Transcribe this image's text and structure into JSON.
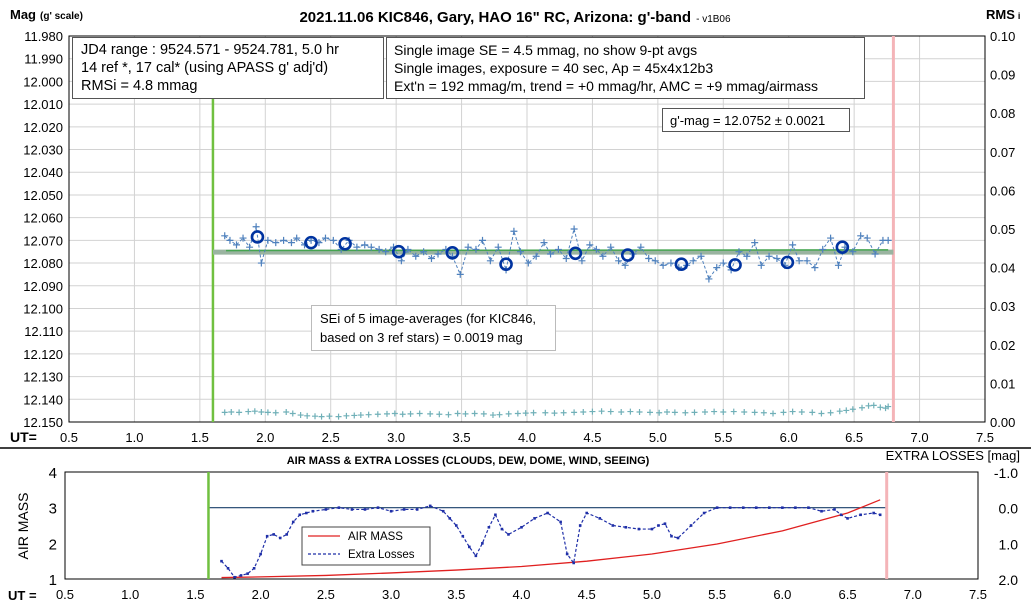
{
  "chart_data": [
    {
      "type": "scatter",
      "title": "2021.11.06 KIC846, Gary, HAO 16\" RC, Arizona: g'-band",
      "title_suffix": "- v1B06",
      "ylabel_main": "Mag",
      "ylabel_sub": "(g' scale)",
      "y2label_main": "RMS",
      "y2label_sub": "i",
      "xlabel": "UT=",
      "xlim": [
        0.5,
        7.5
      ],
      "ylim": [
        12.15,
        11.98
      ],
      "y2lim": [
        0.0,
        0.1
      ],
      "x_ticks": [
        "0.5",
        "1.0",
        "1.5",
        "2.0",
        "2.5",
        "3.0",
        "3.5",
        "4.0",
        "4.5",
        "5.0",
        "5.5",
        "6.0",
        "6.5",
        "7.0",
        "7.5"
      ],
      "y_ticks": [
        "11.980",
        "11.990",
        "12.000",
        "12.010",
        "12.020",
        "12.030",
        "12.040",
        "12.050",
        "12.060",
        "12.070",
        "12.080",
        "12.090",
        "12.100",
        "12.110",
        "12.120",
        "12.130",
        "12.140",
        "12.150"
      ],
      "y2_ticks": [
        "0.10",
        "0.09",
        "0.08",
        "0.07",
        "0.06",
        "0.05",
        "0.04",
        "0.03",
        "0.02",
        "0.01",
        "0.00"
      ],
      "grid": true,
      "green_vline_x": 1.6,
      "pink_vline_x": 6.8,
      "mean_mag": 12.0752,
      "single_images": {
        "x": [
          1.69,
          1.73,
          1.78,
          1.83,
          1.88,
          1.93,
          1.97,
          2.02,
          2.08,
          2.14,
          2.2,
          2.24,
          2.3,
          2.35,
          2.41,
          2.46,
          2.52,
          2.58,
          2.64,
          2.7,
          2.76,
          2.81,
          2.87,
          2.92,
          2.98,
          3.04,
          3.09,
          3.15,
          3.21,
          3.27,
          3.32,
          3.38,
          3.43,
          3.49,
          3.55,
          3.61,
          3.66,
          3.72,
          3.78,
          3.84,
          3.9,
          3.95,
          4.01,
          4.07,
          4.13,
          4.18,
          4.24,
          4.3,
          4.36,
          4.42,
          4.48,
          4.53,
          4.58,
          4.64,
          4.7,
          4.75,
          4.81,
          4.87,
          4.93,
          4.98,
          5.04,
          5.1,
          5.16,
          5.22,
          5.27,
          5.33,
          5.39,
          5.45,
          5.5,
          5.56,
          5.62,
          5.68,
          5.74,
          5.79,
          5.85,
          5.91,
          5.97,
          6.03,
          6.08,
          6.14,
          6.2,
          6.26,
          6.32,
          6.38,
          6.43,
          6.49,
          6.55,
          6.6,
          6.66,
          6.72,
          6.76
        ],
        "y": [
          12.068,
          12.07,
          12.072,
          12.069,
          12.073,
          12.064,
          12.08,
          12.07,
          12.071,
          12.07,
          12.071,
          12.069,
          12.072,
          12.07,
          12.071,
          12.069,
          12.07,
          12.074,
          12.07,
          12.073,
          12.072,
          12.073,
          12.074,
          12.075,
          12.073,
          12.079,
          12.074,
          12.077,
          12.075,
          12.078,
          12.076,
          12.074,
          12.077,
          12.085,
          12.073,
          12.074,
          12.07,
          12.079,
          12.073,
          12.083,
          12.066,
          12.075,
          12.08,
          12.077,
          12.071,
          12.076,
          12.074,
          12.078,
          12.065,
          12.079,
          12.072,
          12.074,
          12.077,
          12.073,
          12.079,
          12.081,
          12.076,
          12.073,
          12.078,
          12.079,
          12.081,
          12.08,
          12.082,
          12.081,
          12.079,
          12.077,
          12.087,
          12.082,
          12.08,
          12.083,
          12.075,
          12.077,
          12.071,
          12.081,
          12.077,
          12.078,
          12.081,
          12.072,
          12.079,
          12.079,
          12.082,
          12.074,
          12.069,
          12.081,
          12.073,
          12.075,
          12.068,
          12.069,
          12.076,
          12.07,
          12.07
        ]
      },
      "averages_9pt": {
        "x": [
          1.94,
          2.35,
          2.61,
          3.02,
          3.43,
          3.84,
          4.37,
          4.77,
          5.18,
          5.59,
          5.99,
          6.41
        ],
        "y": [
          12.0685,
          12.071,
          12.0715,
          12.075,
          12.0755,
          12.0805,
          12.0757,
          12.0765,
          12.0805,
          12.0808,
          12.0797,
          12.073
        ]
      },
      "rmsi": {
        "x": [
          1.69,
          1.74,
          1.8,
          1.87,
          1.92,
          1.97,
          2.02,
          2.08,
          2.16,
          2.21,
          2.27,
          2.32,
          2.38,
          2.43,
          2.49,
          2.56,
          2.62,
          2.68,
          2.73,
          2.79,
          2.86,
          2.93,
          2.99,
          3.05,
          3.11,
          3.18,
          3.26,
          3.33,
          3.4,
          3.47,
          3.53,
          3.6,
          3.67,
          3.74,
          3.79,
          3.86,
          3.93,
          3.99,
          4.05,
          4.14,
          4.21,
          4.28,
          4.36,
          4.43,
          4.5,
          4.57,
          4.64,
          4.72,
          4.79,
          4.86,
          4.94,
          5.01,
          5.07,
          5.13,
          5.21,
          5.28,
          5.36,
          5.43,
          5.5,
          5.58,
          5.66,
          5.74,
          5.81,
          5.88,
          5.96,
          6.03,
          6.1,
          6.18,
          6.25,
          6.32,
          6.39,
          6.44,
          6.49,
          6.56,
          6.61,
          6.65,
          6.7,
          6.74,
          6.76
        ],
        "y": [
          0.0025,
          0.0026,
          0.0025,
          0.0027,
          0.0028,
          0.0026,
          0.0025,
          0.0024,
          0.0026,
          0.0022,
          0.0018,
          0.0016,
          0.0015,
          0.0014,
          0.0015,
          0.0014,
          0.0016,
          0.0017,
          0.0018,
          0.0019,
          0.002,
          0.0021,
          0.0022,
          0.002,
          0.0021,
          0.0022,
          0.0021,
          0.002,
          0.0019,
          0.0022,
          0.0021,
          0.0022,
          0.0021,
          0.0018,
          0.0019,
          0.0021,
          0.0022,
          0.0023,
          0.0024,
          0.0024,
          0.0023,
          0.0024,
          0.0025,
          0.0026,
          0.0027,
          0.0028,
          0.0027,
          0.0026,
          0.0027,
          0.0026,
          0.0025,
          0.0024,
          0.0026,
          0.0025,
          0.0024,
          0.0025,
          0.0026,
          0.0027,
          0.0026,
          0.0027,
          0.0026,
          0.0025,
          0.0024,
          0.0022,
          0.0025,
          0.0027,
          0.0026,
          0.0025,
          0.0022,
          0.0024,
          0.0028,
          0.003,
          0.0033,
          0.0037,
          0.0042,
          0.0043,
          0.0038,
          0.0036,
          0.004
        ]
      }
    },
    {
      "type": "line",
      "title": "AIR MASS & EXTRA LOSSES (CLOUDS, DEW, DOME, WIND, SEEING)",
      "ylabel": "AIR MASS",
      "y2label": "EXTRA LOSSES [mag]",
      "xlabel": "UT =",
      "xlim": [
        0.5,
        7.5
      ],
      "ylim": [
        1,
        4
      ],
      "y2lim": [
        2.0,
        -1.0
      ],
      "x_ticks": [
        "0.5",
        "1.0",
        "1.5",
        "2.0",
        "2.5",
        "3.0",
        "3.5",
        "4.0",
        "4.5",
        "5.0",
        "5.5",
        "6.0",
        "6.5",
        "7.0",
        "7.5"
      ],
      "y_ticks": [
        "4",
        "3",
        "2",
        "1"
      ],
      "y2_ticks": [
        "-1.0",
        "0.0",
        "1.0",
        "2.0"
      ],
      "green_vline_x": 1.6,
      "pink_vline_x": 6.8,
      "reference_line_y2": 0.0,
      "series": [
        {
          "name": "AIR MASS",
          "x": [
            1.7,
            2.0,
            2.5,
            3.0,
            3.5,
            4.0,
            4.5,
            5.0,
            5.5,
            6.0,
            6.5,
            6.75
          ],
          "y": [
            1.04,
            1.06,
            1.1,
            1.17,
            1.25,
            1.35,
            1.5,
            1.7,
            1.98,
            2.35,
            2.85,
            3.22
          ]
        },
        {
          "name": "Extra Losses",
          "x": [
            1.7,
            1.75,
            1.8,
            1.85,
            1.9,
            1.95,
            2.0,
            2.05,
            2.1,
            2.15,
            2.2,
            2.25,
            2.3,
            2.35,
            2.4,
            2.5,
            2.6,
            2.7,
            2.8,
            2.9,
            3.0,
            3.1,
            3.2,
            3.3,
            3.4,
            3.45,
            3.5,
            3.55,
            3.6,
            3.65,
            3.7,
            3.75,
            3.8,
            3.85,
            3.9,
            4.0,
            4.1,
            4.2,
            4.3,
            4.35,
            4.4,
            4.45,
            4.5,
            4.6,
            4.7,
            4.8,
            4.9,
            5.0,
            5.05,
            5.1,
            5.15,
            5.2,
            5.3,
            5.4,
            5.5,
            5.6,
            5.7,
            5.8,
            5.9,
            6.0,
            6.1,
            6.2,
            6.3,
            6.4,
            6.45,
            6.5,
            6.6,
            6.7,
            6.75
          ],
          "y": [
            1.5,
            1.7,
            1.95,
            1.9,
            1.85,
            1.7,
            1.3,
            0.8,
            0.75,
            0.85,
            0.75,
            0.4,
            0.2,
            0.15,
            0.1,
            0.05,
            0.0,
            0.05,
            0.05,
            0.0,
            0.1,
            0.05,
            0.05,
            -0.05,
            0.1,
            0.3,
            0.5,
            0.8,
            1.1,
            1.35,
            1.0,
            0.55,
            0.2,
            0.6,
            0.75,
            0.55,
            0.3,
            0.15,
            0.4,
            1.3,
            1.55,
            0.5,
            0.15,
            0.3,
            0.5,
            0.55,
            0.6,
            0.6,
            0.5,
            0.45,
            0.8,
            0.85,
            0.5,
            0.15,
            0.0,
            0.0,
            0.0,
            0.0,
            0.0,
            0.0,
            0.0,
            0.0,
            0.1,
            0.05,
            0.2,
            0.3,
            0.2,
            0.15,
            0.2
          ]
        }
      ]
    }
  ],
  "annotations": {
    "box1": [
      "JD4 range : 9524.571 - 9524.781,  5.0  hr",
      "14 ref *, 17 cal* (using APASS g' adj'd)",
      "RMSi = 4.8 mmag"
    ],
    "box2": [
      "Single image SE = 4.5 mmag, no show  9-pt avgs",
      "Single images, exposure = 40 sec, Ap = 45x4x12b3",
      "Ext'n = 192 mmag/m, trend = +0 mmag/hr, AMC = +9 mmag/airmass"
    ],
    "gmag": "g'-mag = 12.0752 ± 0.0021",
    "sei": [
      "SEi of 5 image-averages (for KIC846,",
      "based on 3 ref stars) = 0.0019 mag"
    ]
  },
  "colors": {
    "grid": "#d2d2d2",
    "frame": "#000000",
    "single_points": "#4f81bd",
    "averages": "#0033a0",
    "rmsi_points": "#70b0b8",
    "mean_line": "#9ab4a0",
    "mean_line_inner": "#45a550",
    "green_line": "#70c040",
    "pink_line": "#f4b4b8",
    "airmass": "#e02020",
    "extra_losses": "#1f2fa8",
    "ref_line": "#1a3f6a"
  }
}
